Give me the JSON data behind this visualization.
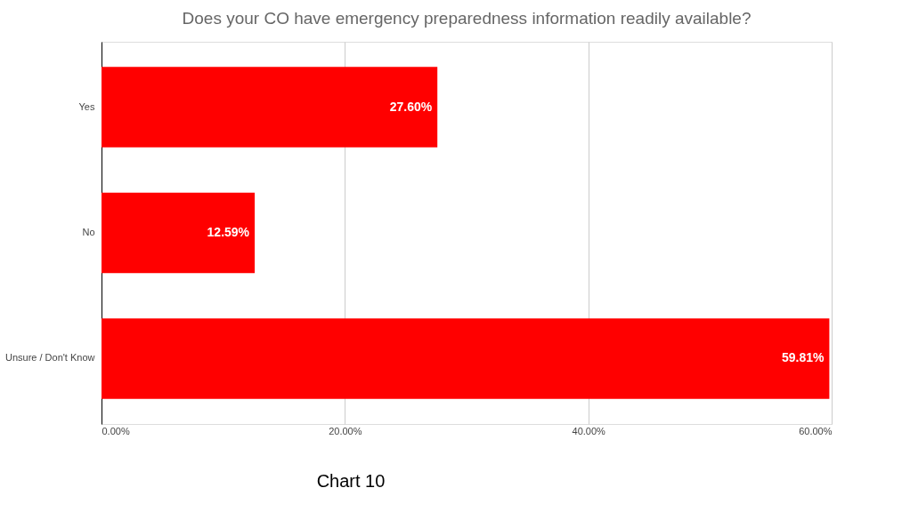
{
  "chart_data": {
    "type": "bar",
    "orientation": "horizontal",
    "title": "Does your CO have emergency preparedness information readily available?",
    "categories": [
      "Yes",
      "No",
      "Unsure / Don't Know"
    ],
    "values": [
      27.6,
      12.59,
      59.81
    ],
    "value_labels": [
      "27.60%",
      "12.59%",
      "59.81%"
    ],
    "color": "#ff0000",
    "xlim": [
      0,
      60
    ],
    "xticks": [
      {
        "value": 0,
        "label": "0.00%"
      },
      {
        "value": 20,
        "label": "20.00%"
      },
      {
        "value": 40,
        "label": "40.00%"
      },
      {
        "value": 60,
        "label": "60.00%"
      }
    ],
    "grid": "x",
    "annotations": [
      "Chart 10"
    ]
  }
}
